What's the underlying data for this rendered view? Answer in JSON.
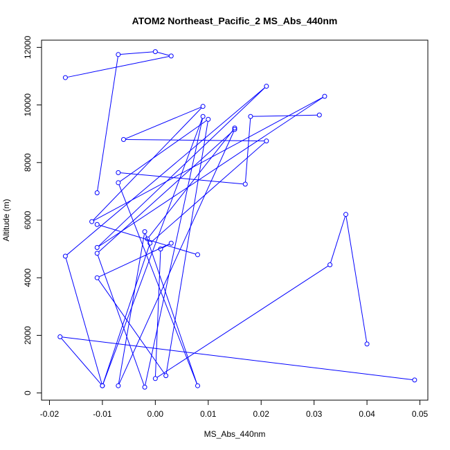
{
  "chart_data": {
    "type": "line",
    "title": "ATOM2 Northeast_Pacific_2 MS_Abs_440nm",
    "xlabel": "MS_Abs_440nm",
    "ylabel": "Altitude (m)",
    "xlim": [
      -0.0215,
      0.0515
    ],
    "ylim": [
      -250,
      12250
    ],
    "x_ticks": [
      -0.02,
      -0.01,
      0.0,
      0.01,
      0.02,
      0.03,
      0.04,
      0.05
    ],
    "x_tick_labels": [
      "-0.02",
      "-0.01",
      "0.00",
      "0.01",
      "0.02",
      "0.03",
      "0.04",
      "0.05"
    ],
    "y_ticks": [
      0,
      2000,
      4000,
      6000,
      8000,
      10000,
      12000
    ],
    "y_tick_labels": [
      "0",
      "2000",
      "4000",
      "6000",
      "8000",
      "10000",
      "12000"
    ],
    "grid": false,
    "series_color": "#0000ff",
    "series": [
      {
        "points": [
          [
            0.049,
            450
          ],
          [
            -0.018,
            1950
          ],
          [
            -0.01,
            250
          ],
          [
            -0.001,
            5200
          ],
          [
            0.021,
            8750
          ],
          [
            -0.006,
            8800
          ],
          [
            0.009,
            9950
          ],
          [
            -0.012,
            5950
          ],
          [
            0.032,
            10300
          ],
          [
            -0.011,
            5050
          ],
          [
            0.021,
            10650
          ],
          [
            -0.017,
            4750
          ],
          [
            -0.01,
            250
          ],
          [
            0.009,
            9600
          ],
          [
            -0.002,
            200
          ],
          [
            -0.011,
            4850
          ],
          [
            0.015,
            9150
          ],
          [
            -0.007,
            250
          ],
          [
            -0.002,
            5600
          ],
          [
            0.008,
            250
          ],
          [
            -0.007,
            7300
          ],
          [
            0.01,
            9500
          ],
          [
            0.002,
            600
          ],
          [
            -0.011,
            4000
          ],
          [
            0.003,
            5200
          ],
          [
            0.001,
            5000
          ],
          [
            0.0,
            500
          ],
          [
            0.033,
            4450
          ],
          [
            0.036,
            6200
          ],
          [
            0.04,
            1700
          ]
        ]
      },
      {
        "points": [
          [
            -0.011,
            6950
          ],
          [
            -0.007,
            11750
          ],
          [
            0.0,
            11850
          ],
          [
            0.003,
            11700
          ],
          [
            -0.017,
            10950
          ]
        ]
      },
      {
        "points": [
          [
            -0.011,
            5850
          ],
          [
            0.008,
            4800
          ]
        ]
      },
      {
        "points": [
          [
            -0.007,
            7650
          ],
          [
            0.017,
            7250
          ],
          [
            0.018,
            9600
          ],
          [
            0.031,
            9650
          ]
        ]
      },
      {
        "points": [
          [
            -0.0015,
            5350
          ],
          [
            0.015,
            9200
          ]
        ]
      }
    ]
  }
}
